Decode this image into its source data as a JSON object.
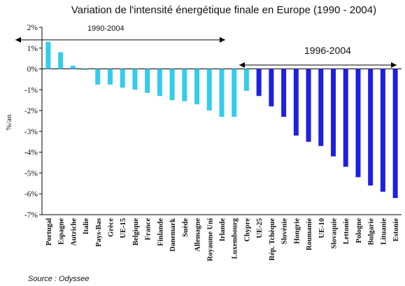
{
  "chart_data": {
    "type": "bar",
    "title": "Variation de l'intensité énergétique finale en Europe (1990 - 2004)",
    "ylabel": "%/an",
    "ylim": [
      -7,
      2
    ],
    "yticks": [
      "2%",
      "1%",
      "0%",
      "-1%",
      "-2%",
      "-3%",
      "-4%",
      "-5%",
      "-6%",
      "-7%"
    ],
    "grid": false,
    "source": "Source : Odyssee",
    "groups": [
      {
        "label": "1990-2004",
        "color": "#33ccee",
        "categories": [
          "Portugal",
          "Espagne",
          "Autriche",
          "Italie",
          "Pays-Bas",
          "Grèce",
          "UE-15",
          "Belgique",
          "France",
          "Finlande",
          "Danemark",
          "Suède",
          "Allemagne",
          "Royaume Uni",
          "Irlande",
          "Luxembourg",
          "Chypre"
        ],
        "values": [
          1.3,
          0.8,
          0.15,
          -0.05,
          -0.75,
          -0.75,
          -0.9,
          -1.0,
          -1.15,
          -1.3,
          -1.5,
          -1.55,
          -1.7,
          -2.0,
          -2.3,
          -2.3,
          -1.05
        ]
      },
      {
        "label": "1996-2004",
        "color": "#1f1fe0",
        "categories": [
          "UE-25",
          "Rép. Tchèque",
          "Slovénie",
          "Hongrie",
          "Roumanie",
          "UE-10",
          "Slovaquie",
          "Lettonie",
          "Pologne",
          "Bulgarie",
          "Lituanie",
          "Estonie"
        ],
        "values": [
          -1.3,
          -1.8,
          -2.3,
          -3.2,
          -3.5,
          -3.7,
          -4.2,
          -4.7,
          -5.2,
          -5.6,
          -5.9,
          -6.2
        ]
      }
    ]
  }
}
